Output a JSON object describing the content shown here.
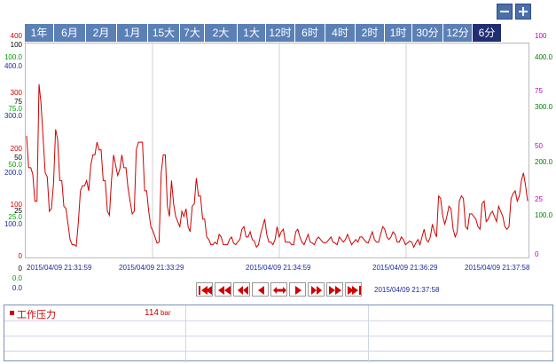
{
  "zoom": {
    "out_icon": "minus-icon",
    "in_icon": "plus-icon"
  },
  "tabs": [
    {
      "label": "1年",
      "width": 33
    },
    {
      "label": "6月",
      "width": 36
    },
    {
      "label": "2月",
      "width": 35
    },
    {
      "label": "1月",
      "width": 35
    },
    {
      "label": "15大",
      "width": 36
    },
    {
      "label": "7大",
      "width": 28
    },
    {
      "label": "2大",
      "width": 37
    },
    {
      "label": "1大",
      "width": 32
    },
    {
      "label": "12时",
      "width": 33
    },
    {
      "label": "6时",
      "width": 34
    },
    {
      "label": "4时",
      "width": 34
    },
    {
      "label": "2时",
      "width": 33
    },
    {
      "label": "1时",
      "width": 31
    },
    {
      "label": "30分",
      "width": 35
    },
    {
      "label": "12分",
      "width": 33
    },
    {
      "label": "6分",
      "width": 33
    }
  ],
  "active_tab": "6分",
  "left_axis": [
    {
      "text": "400",
      "cls": "red",
      "top": 37
    },
    {
      "text": "100",
      "cls": "black",
      "top": 47
    },
    {
      "text": "100.0",
      "cls": "green",
      "top": 61
    },
    {
      "text": "400.0",
      "cls": "blue",
      "top": 71
    },
    {
      "text": "300",
      "cls": "red",
      "top": 101
    },
    {
      "text": "75",
      "cls": "black",
      "top": 111
    },
    {
      "text": "75.0",
      "cls": "green",
      "top": 119
    },
    {
      "text": "300.0",
      "cls": "blue",
      "top": 127
    },
    {
      "text": "200",
      "cls": "red",
      "top": 164
    },
    {
      "text": "50",
      "cls": "black",
      "top": 174
    },
    {
      "text": "50.0",
      "cls": "green",
      "top": 182
    },
    {
      "text": "200.0",
      "cls": "blue",
      "top": 191
    },
    {
      "text": "100",
      "cls": "red",
      "top": 227
    },
    {
      "text": "25",
      "cls": "black",
      "top": 234
    },
    {
      "text": "25.0",
      "cls": "green",
      "top": 241
    },
    {
      "text": "100.0",
      "cls": "blue",
      "top": 249
    },
    {
      "text": "0",
      "cls": "red",
      "top": 285
    },
    {
      "text": "0",
      "cls": "black",
      "top": 299
    },
    {
      "text": "0.0",
      "cls": "green",
      "top": 310
    },
    {
      "text": "0.0",
      "cls": "blue",
      "top": 321
    }
  ],
  "right_axis": [
    {
      "text": "100",
      "cls": "magenta",
      "top": 37
    },
    {
      "text": "400.0",
      "cls": "dkgreen",
      "top": 61
    },
    {
      "text": "75",
      "cls": "magenta",
      "top": 99
    },
    {
      "text": "300.0",
      "cls": "dkgreen",
      "top": 117
    },
    {
      "text": "50",
      "cls": "magenta",
      "top": 161
    },
    {
      "text": "200.0",
      "cls": "dkgreen",
      "top": 179
    },
    {
      "text": "25",
      "cls": "magenta",
      "top": 221
    },
    {
      "text": "100.0",
      "cls": "dkgreen",
      "top": 239
    },
    {
      "text": "0",
      "cls": "magenta",
      "top": 283
    }
  ],
  "time_axis": [
    {
      "text": "2015/04/09 21:31:59",
      "left": 30
    },
    {
      "text": "2015/04/09 21:33:29",
      "left": 134
    },
    {
      "text": "2015/04/09 21:34:59",
      "left": 277
    },
    {
      "text": "2015/04/09 21:36:29",
      "left": 420
    },
    {
      "text": "2015/04/09 21:37:58",
      "left": 524
    }
  ],
  "current_time": "2015/04/09 21:37:58",
  "nav_buttons": [
    {
      "name": "first-button",
      "icon": "skip-first-icon"
    },
    {
      "name": "fast-back-button",
      "icon": "fast-rewind-icon"
    },
    {
      "name": "back-button",
      "icon": "rewind-icon"
    },
    {
      "name": "step-back-button",
      "icon": "step-back-icon"
    },
    {
      "name": "expand-button",
      "icon": "double-arrow-icon"
    },
    {
      "name": "step-forward-button",
      "icon": "step-forward-icon"
    },
    {
      "name": "forward-button",
      "icon": "forward-icon"
    },
    {
      "name": "fast-forward-button",
      "icon": "fast-forward-icon"
    },
    {
      "name": "last-button",
      "icon": "skip-last-icon"
    }
  ],
  "legend": {
    "series_name": "工作压力",
    "value": "114",
    "unit": "bar",
    "color": "#d00000"
  },
  "chart_data": {
    "type": "line",
    "series": [
      {
        "name": "工作压力",
        "color": "#d00000",
        "y_range": [
          0,
          400
        ],
        "values": [
          237,
          175,
          175,
          162,
          110,
          110,
          338,
          300,
          230,
          165,
          157,
          90,
          95,
          145,
          250,
          230,
          150,
          150,
          100,
          95,
          65,
          35,
          25,
          25,
          22,
          70,
          130,
          140,
          140,
          150,
          130,
          180,
          200,
          200,
          225,
          210,
          210,
          150,
          150,
          90,
          82,
          150,
          200,
          180,
          160,
          172,
          200,
          175,
          175,
          135,
          110,
          85,
          90,
          210,
          225,
          225,
          225,
          130,
          130,
          90,
          60,
          52,
          40,
          28,
          30,
          165,
          200,
          200,
          100,
          80,
          150,
          105,
          80,
          70,
          60,
          90,
          80,
          95,
          60,
          50,
          100,
          105,
          155,
          120,
          120,
          75,
          75,
          40,
          35,
          25,
          25,
          30,
          26,
          45,
          40,
          25,
          25,
          25,
          35,
          40,
          28,
          25,
          30,
          35,
          55,
          60,
          40,
          40,
          50,
          35,
          32,
          20,
          25,
          45,
          60,
          75,
          45,
          30,
          30,
          25,
          35,
          60,
          40,
          50,
          55,
          30,
          30,
          30,
          25,
          25,
          50,
          55,
          40,
          30,
          25,
          35,
          45,
          30,
          28,
          25,
          35,
          40,
          35,
          30,
          28,
          30,
          35,
          40,
          30,
          28,
          25,
          40,
          35,
          30,
          35,
          45,
          35,
          25,
          30,
          35,
          30,
          40,
          40,
          35,
          30,
          28,
          40,
          50,
          35,
          30,
          30,
          45,
          60,
          55,
          40,
          35,
          40,
          50,
          45,
          30,
          30,
          40,
          35,
          25,
          28,
          32,
          30,
          20,
          28,
          35,
          25,
          40,
          55,
          35,
          30,
          40,
          65,
          50,
          40,
          120,
          115,
          80,
          65,
          80,
          100,
          95,
          55,
          40,
          50,
          110,
          120,
          115,
          60,
          55,
          85,
          85,
          80,
          75,
          60,
          55,
          105,
          110,
          70,
          75,
          85,
          90,
          80,
          70,
          100,
          90,
          80,
          60,
          55,
          60,
          115,
          125,
          130,
          110,
          120,
          150,
          165,
          140,
          110
        ]
      }
    ]
  }
}
